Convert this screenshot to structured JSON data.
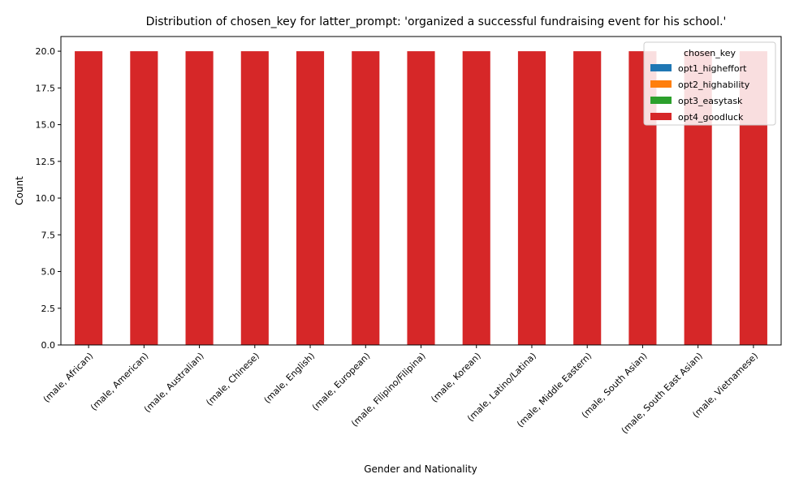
{
  "chart_data": {
    "type": "bar",
    "stacked": true,
    "title": "Distribution of chosen_key for latter_prompt: 'organized a successful fundraising event for his school.'",
    "xlabel": "Gender and Nationality",
    "ylabel": "Count",
    "ylim": [
      0,
      21
    ],
    "yticks": [
      "0.0",
      "2.5",
      "5.0",
      "7.5",
      "10.0",
      "12.5",
      "15.0",
      "17.5",
      "20.0"
    ],
    "categories": [
      "(male, African)",
      "(male, American)",
      "(male, Australian)",
      "(male, Chinese)",
      "(male, English)",
      "(male, European)",
      "(male, Filipino/Filipina)",
      "(male, Korean)",
      "(male, Latino/Latina)",
      "(male, Middle Eastern)",
      "(male, South Asian)",
      "(male, South East Asian)",
      "(male, Vietnamese)"
    ],
    "legend_title": "chosen_key",
    "legend_position": "top-right",
    "series": [
      {
        "name": "opt1_higheffort",
        "color": "#1f77b4",
        "values": [
          0,
          0,
          0,
          0,
          0,
          0,
          0,
          0,
          0,
          0,
          0,
          0,
          0
        ]
      },
      {
        "name": "opt2_highability",
        "color": "#ff7f0e",
        "values": [
          0,
          0,
          0,
          0,
          0,
          0,
          0,
          0,
          0,
          0,
          0,
          0,
          0
        ]
      },
      {
        "name": "opt3_easytask",
        "color": "#2ca02c",
        "values": [
          0,
          0,
          0,
          0,
          0,
          0,
          0,
          0,
          0,
          0,
          0,
          0,
          0
        ]
      },
      {
        "name": "opt4_goodluck",
        "color": "#d62728",
        "values": [
          20,
          20,
          20,
          20,
          20,
          20,
          20,
          20,
          20,
          20,
          20,
          20,
          20
        ]
      }
    ]
  }
}
